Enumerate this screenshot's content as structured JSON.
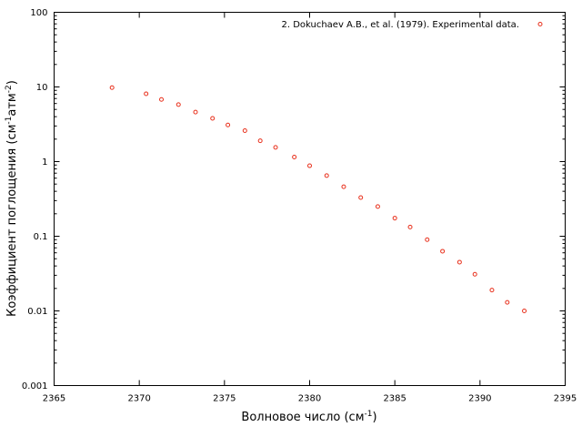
{
  "chart_data": {
    "type": "scatter",
    "xlabel": "Волновое число (см",
    "xlabel_sup": "-1",
    "xlabel_end": ")",
    "ylabel_parts": [
      "Коэффициент поглощения (см",
      "-1",
      "атм",
      "-2",
      ")"
    ],
    "xlim": [
      2365,
      2395
    ],
    "ylim": [
      0.001,
      100
    ],
    "yscale": "log",
    "x_ticks": [
      "2365",
      "2370",
      "2375",
      "2380",
      "2385",
      "2390",
      "2395"
    ],
    "y_ticks": [
      "0.001",
      "0.01",
      "0.1",
      "1",
      "10",
      "100"
    ],
    "grid": false,
    "legend_position": "top-right",
    "series": [
      {
        "name": "2. Dokuchaev A.B., et al. (1979). Experimental data.",
        "color": "#e8301c",
        "marker": "open-circle",
        "points": [
          [
            2368.4,
            9.8
          ],
          [
            2370.4,
            8.1
          ],
          [
            2371.3,
            6.8
          ],
          [
            2372.3,
            5.8
          ],
          [
            2373.3,
            4.6
          ],
          [
            2374.3,
            3.8
          ],
          [
            2375.2,
            3.1
          ],
          [
            2376.2,
            2.6
          ],
          [
            2377.1,
            1.9
          ],
          [
            2378.0,
            1.55
          ],
          [
            2379.1,
            1.15
          ],
          [
            2380.0,
            0.88
          ],
          [
            2381.0,
            0.65
          ],
          [
            2382.0,
            0.46
          ],
          [
            2383.0,
            0.33
          ],
          [
            2384.0,
            0.25
          ],
          [
            2385.0,
            0.175
          ],
          [
            2385.9,
            0.133
          ],
          [
            2386.9,
            0.09
          ],
          [
            2387.8,
            0.063
          ],
          [
            2388.8,
            0.045
          ],
          [
            2389.7,
            0.031
          ],
          [
            2390.7,
            0.019
          ],
          [
            2391.6,
            0.013
          ],
          [
            2392.6,
            0.01
          ]
        ]
      }
    ]
  }
}
